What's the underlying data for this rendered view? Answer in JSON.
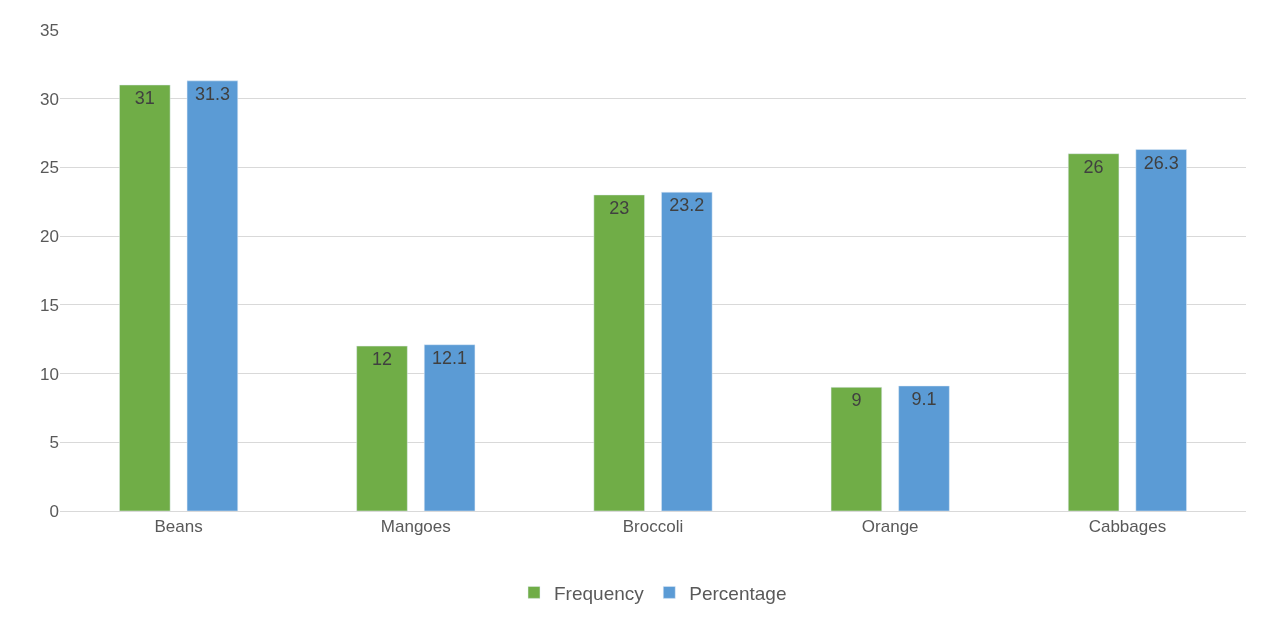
{
  "chart_data": {
    "type": "bar",
    "categories": [
      "Beans",
      "Mangoes",
      "Broccoli",
      "Orange",
      "Cabbages"
    ],
    "series": [
      {
        "name": "Frequency",
        "color": "#70ad47",
        "values": [
          31,
          12,
          23,
          9,
          26
        ]
      },
      {
        "name": "Percentage",
        "color": "#5b9bd5",
        "values": [
          31.3,
          12.1,
          23.2,
          9.1,
          26.3
        ]
      }
    ],
    "ylim": [
      0,
      35
    ],
    "yticks": [
      0,
      5,
      10,
      15,
      20,
      25,
      30,
      35
    ],
    "grid": "y",
    "legend": "bottom",
    "data_labels": true
  }
}
